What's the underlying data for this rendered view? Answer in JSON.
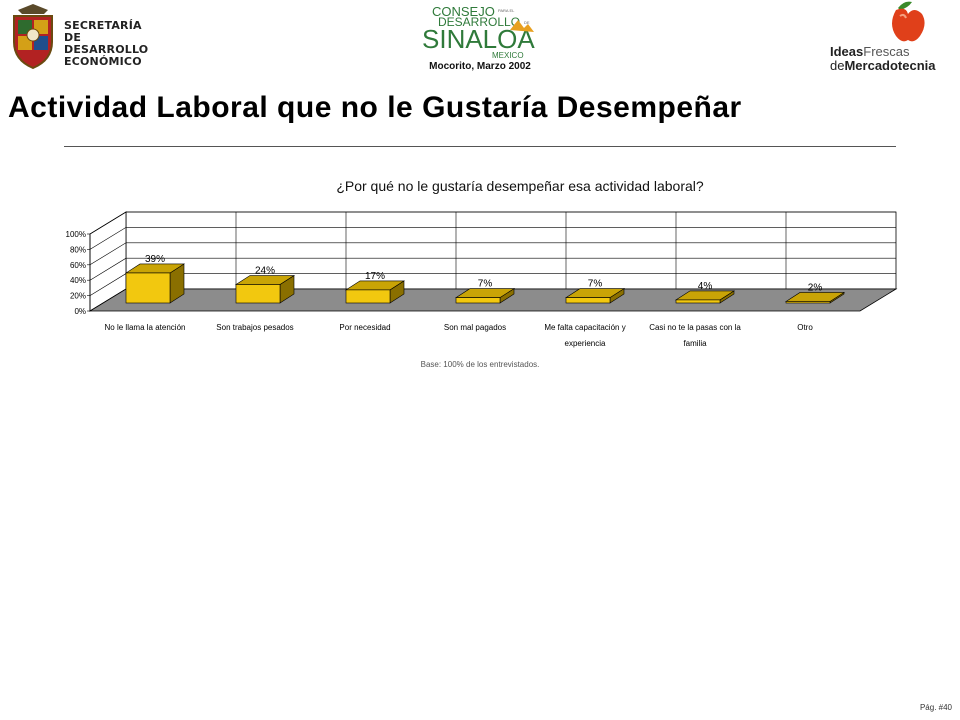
{
  "header": {
    "left_logo": {
      "line1": "SECRETARÍA",
      "line2": "DE DESARROLLO",
      "line3": "ECONÓMICO",
      "icon": "state-seal-icon"
    },
    "center_logo": {
      "word1": "CONSEJO",
      "word1_small": "PARA EL",
      "word2": "DESARROLLO",
      "word2_small": "DE",
      "word3": "SINALOA",
      "word4": "MEXICO"
    },
    "date": "Mocorito, Marzo 2002",
    "right_logo": {
      "ideas": "Ideas",
      "frescas": "Frescas",
      "de": "de",
      "mercadotecnia": "Mercadotecnia",
      "icon": "apple-icon"
    }
  },
  "page_title": "Actividad Laboral que no le Gustaría Desempeñar",
  "chart_data": {
    "type": "bar",
    "title": "¿Por qué no le gustaría desempeñar esa actividad laboral?",
    "categories": [
      [
        "No le llama la atención"
      ],
      [
        "Son trabajos pesados"
      ],
      [
        "Por necesidad"
      ],
      [
        "Son mal pagados"
      ],
      [
        "Me falta capacitación y",
        "experiencia"
      ],
      [
        "Casi no te la pasas con la",
        "familia"
      ],
      [
        "Otro"
      ]
    ],
    "values": [
      39,
      24,
      17,
      7,
      7,
      4,
      2
    ],
    "data_labels": [
      "39%",
      "24%",
      "17%",
      "7%",
      "7%",
      "4%",
      "2%"
    ],
    "y_ticks": [
      "0%",
      "20%",
      "40%",
      "60%",
      "80%",
      "100%"
    ],
    "ylim": [
      0,
      100
    ],
    "grid": true,
    "bar_color": "#f2c80f",
    "floor_color": "#8c8c8c"
  },
  "base_note": "Base:  100% de los entrevistados.",
  "page_number": "Pág. #40"
}
